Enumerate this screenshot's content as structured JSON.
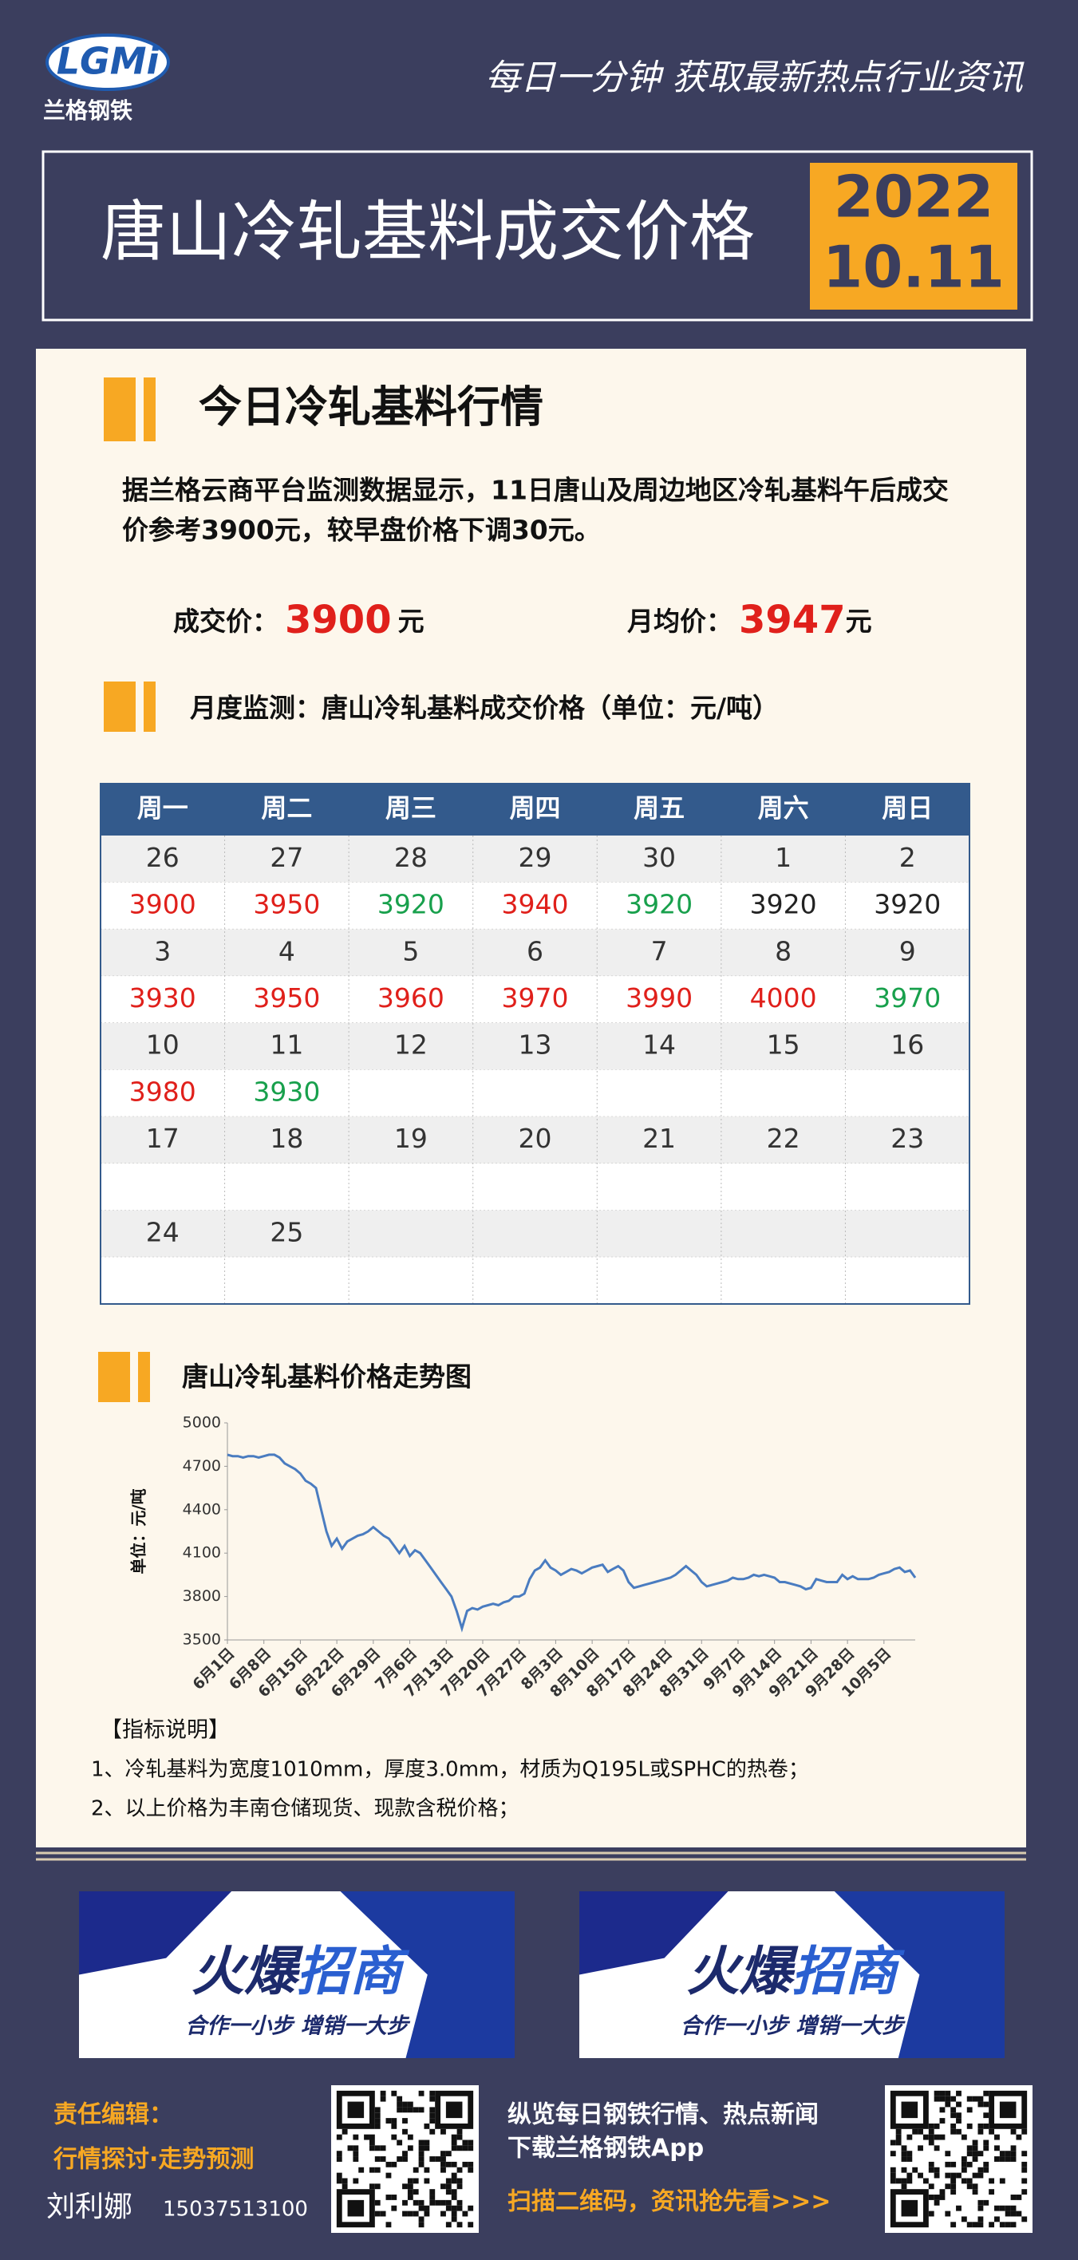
{
  "logo": {
    "mark": "LGMi",
    "name": "兰格钢铁"
  },
  "slogan": "每日一分钟  获取最新热点行业资讯",
  "header": {
    "title": "唐山冷轧基料成交价格",
    "year": "2022",
    "date": "10.11"
  },
  "section1": {
    "title": "今日冷轧基料行情",
    "lines": [
      "据兰格云商平台监测数据显示，11日唐山及周边地区冷轧基料午后成交",
      "价参考3900元，较早盘价格下调30元。"
    ],
    "deal_label": "成交价：",
    "deal_price": 3900,
    "deal_unit": "元",
    "avg_label": "月均价：",
    "avg_price": 3947,
    "avg_unit": "元"
  },
  "section2": {
    "title": "月度监测：唐山冷轧基料成交价格（单位：元/吨）"
  },
  "table": {
    "header": [
      "周一",
      "周二",
      "周三",
      "周四",
      "周五",
      "周六",
      "周日"
    ],
    "weeks": [
      {
        "dates": [
          26,
          27,
          28,
          29,
          30,
          1,
          2
        ],
        "prices": [
          3900,
          3950,
          3920,
          3940,
          3920,
          3920,
          3920
        ],
        "colors": [
          "#e0201b",
          "#e0201b",
          "#18a04c",
          "#e0201b",
          "#18a04c",
          "#222222",
          "#222222"
        ]
      },
      {
        "dates": [
          3,
          4,
          5,
          6,
          7,
          8,
          9
        ],
        "prices": [
          3930,
          3950,
          3960,
          3970,
          3990,
          4000,
          3970
        ],
        "colors": [
          "#e0201b",
          "#e0201b",
          "#e0201b",
          "#e0201b",
          "#e0201b",
          "#e0201b",
          "#18a04c"
        ]
      },
      {
        "dates": [
          10,
          11,
          12,
          13,
          14,
          15,
          16
        ],
        "prices": [
          3980,
          3930,
          null,
          null,
          null,
          null,
          null
        ],
        "colors": [
          "#e0201b",
          "#18a04c",
          null,
          null,
          null,
          null,
          null
        ]
      },
      {
        "dates": [
          17,
          18,
          19,
          20,
          21,
          22,
          23
        ],
        "prices": [
          null,
          null,
          null,
          null,
          null,
          null,
          null
        ],
        "colors": [
          null,
          null,
          null,
          null,
          null,
          null,
          null
        ]
      },
      {
        "dates": [
          24,
          25,
          null,
          null,
          null,
          null,
          null
        ],
        "prices": [
          null,
          null,
          null,
          null,
          null,
          null,
          null
        ],
        "colors": [
          null,
          null,
          null,
          null,
          null,
          null,
          null
        ]
      }
    ]
  },
  "chart_data": {
    "type": "line",
    "title": "唐山冷轧基料价格走势图",
    "y_label": "单位：元/吨",
    "color": "#4a7cc0",
    "ylim": [
      3500,
      5000
    ],
    "yticks": [
      3500,
      3800,
      4100,
      4400,
      4700,
      5000
    ],
    "categories": [
      "6月1日",
      null,
      null,
      null,
      null,
      null,
      null,
      "6月8日",
      null,
      null,
      null,
      null,
      null,
      null,
      "6月15日",
      null,
      null,
      null,
      null,
      null,
      null,
      "6月22日",
      null,
      null,
      null,
      null,
      null,
      null,
      "6月29日",
      null,
      null,
      null,
      null,
      null,
      null,
      "7月6日",
      null,
      null,
      null,
      null,
      null,
      null,
      "7月13日",
      null,
      null,
      null,
      null,
      null,
      null,
      "7月20日",
      null,
      null,
      null,
      null,
      null,
      null,
      "7月27日",
      null,
      null,
      null,
      null,
      null,
      null,
      "8月3日",
      null,
      null,
      null,
      null,
      null,
      null,
      "8月10日",
      null,
      null,
      null,
      null,
      null,
      null,
      "8月17日",
      null,
      null,
      null,
      null,
      null,
      null,
      "8月24日",
      null,
      null,
      null,
      null,
      null,
      null,
      "8月31日",
      null,
      null,
      null,
      null,
      null,
      null,
      "9月7日",
      null,
      null,
      null,
      null,
      null,
      null,
      "9月14日",
      null,
      null,
      null,
      null,
      null,
      null,
      "9月21日",
      null,
      null,
      null,
      null,
      null,
      null,
      "9月28日",
      null,
      null,
      null,
      null,
      null,
      null,
      "10月5日",
      null,
      null,
      null,
      null,
      null,
      null
    ],
    "values": [
      4780,
      4770,
      4770,
      4760,
      4770,
      4770,
      4760,
      4770,
      4780,
      4780,
      4760,
      4720,
      4700,
      4680,
      4650,
      4600,
      4580,
      4550,
      4400,
      4250,
      4150,
      4200,
      4130,
      4180,
      4200,
      4220,
      4230,
      4250,
      4280,
      4250,
      4220,
      4200,
      4150,
      4100,
      4150,
      4080,
      4120,
      4100,
      4050,
      4000,
      3950,
      3900,
      3850,
      3800,
      3700,
      3580,
      3700,
      3720,
      3710,
      3730,
      3740,
      3750,
      3740,
      3760,
      3770,
      3800,
      3800,
      3820,
      3920,
      3980,
      4000,
      4050,
      4000,
      3980,
      3950,
      3970,
      3990,
      3980,
      3960,
      3980,
      4000,
      4010,
      4020,
      3970,
      3990,
      4010,
      3980,
      3900,
      3860,
      3870,
      3880,
      3890,
      3900,
      3910,
      3920,
      3930,
      3950,
      3980,
      4010,
      3980,
      3950,
      3900,
      3870,
      3880,
      3890,
      3900,
      3910,
      3930,
      3920,
      3920,
      3930,
      3950,
      3940,
      3950,
      3940,
      3930,
      3900,
      3900,
      3890,
      3880,
      3870,
      3850,
      3860,
      3920,
      3910,
      3900,
      3900,
      3900,
      3950,
      3920,
      3940,
      3920,
      3920,
      3920,
      3930,
      3950,
      3960,
      3970,
      3990,
      4000,
      3970,
      3980,
      3930
    ]
  },
  "notes": {
    "title": "【指标说明】",
    "items": [
      "1、冷轧基料为宽度1010mm，厚度3.0mm，材质为Q195L或SPHC的热卷；",
      "2、以上价格为丰南仓储现货、现款含税价格；"
    ]
  },
  "banners": [
    {
      "word_a": "火爆",
      "word_b": "招商",
      "slogan": "合作一小步  增销一大步"
    },
    {
      "word_a": "火爆",
      "word_b": "招商",
      "slogan": "合作一小步  增销一大步"
    }
  ],
  "footer": {
    "editor_label": "责任编辑：",
    "topic": "行情探讨·走势预测",
    "editor": "刘利娜",
    "phone": "15037513100",
    "promo": [
      "纵览每日钢铁行情、热点新闻",
      "下载兰格钢铁App",
      "扫描二维码，资讯抢先看>>>"
    ]
  }
}
